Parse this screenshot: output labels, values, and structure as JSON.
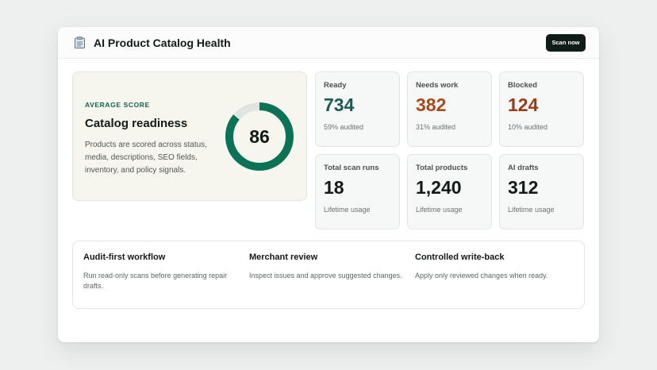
{
  "header": {
    "title": "AI Product Catalog Health",
    "icon": "catalog-clipboard-icon",
    "scan_button": "Scan now"
  },
  "score": {
    "eyebrow": "AVERAGE SCORE",
    "heading": "Catalog readiness",
    "description": "Products are scored across status, media, descriptions, SEO fields, inventory, and policy signals.",
    "value": "86",
    "percent": 86,
    "gauge_color": "#0a7356",
    "track_color": "#e0e5e2"
  },
  "stats": [
    {
      "label": "Ready",
      "value": "734",
      "sub": "59% audited",
      "color": "#1a5c55"
    },
    {
      "label": "Needs work",
      "value": "382",
      "sub": "31% audited",
      "color": "#a64b1b"
    },
    {
      "label": "Blocked",
      "value": "124",
      "sub": "10% audited",
      "color": "#9c3a17"
    },
    {
      "label": "Total scan runs",
      "value": "18",
      "sub": "Lifetime usage",
      "color": "#131a17"
    },
    {
      "label": "Total products",
      "value": "1,240",
      "sub": "Lifetime usage",
      "color": "#131a17"
    },
    {
      "label": "AI drafts",
      "value": "312",
      "sub": "Lifetime usage",
      "color": "#131a17"
    }
  ],
  "workflow": [
    {
      "title": "Audit-first workflow",
      "description": "Run read-only scans before generating repair drafts."
    },
    {
      "title": "Merchant review",
      "description": "Inspect issues and approve suggested changes."
    },
    {
      "title": "Controlled write-back",
      "description": "Apply only reviewed changes when ready."
    }
  ]
}
